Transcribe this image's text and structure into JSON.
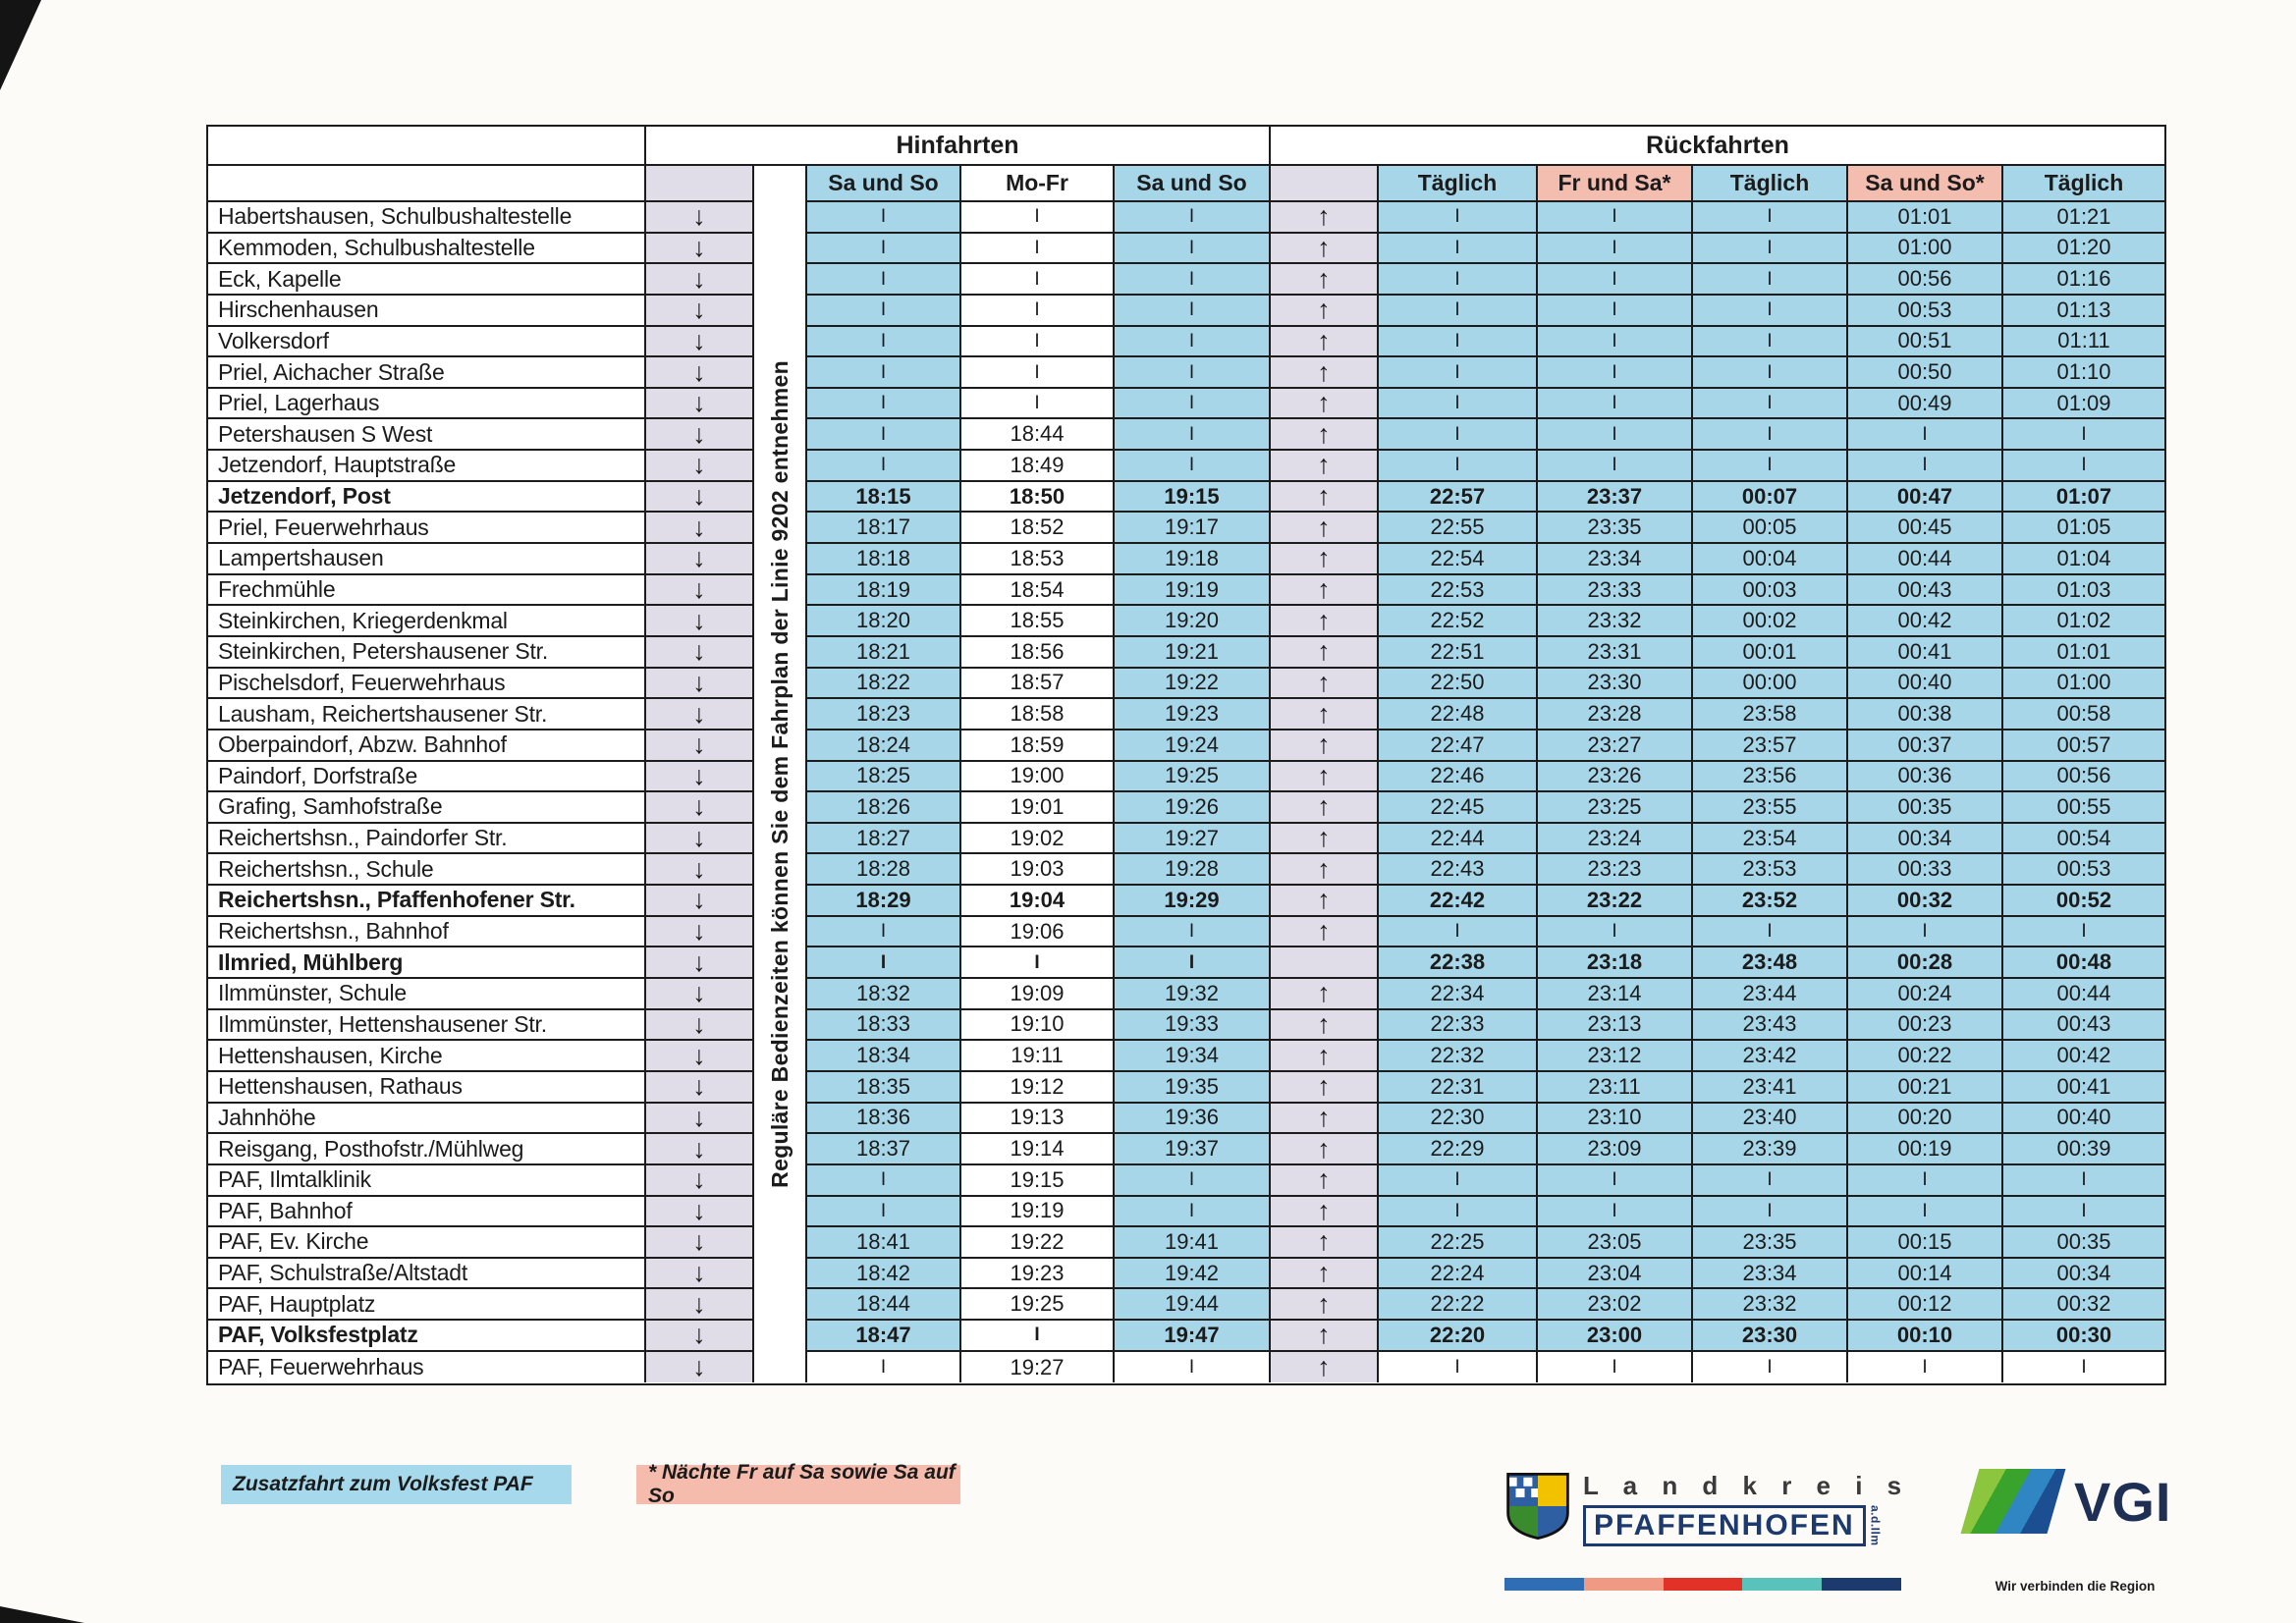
{
  "table": {
    "section_hin": "Hinfahrten",
    "section_rueck": "Rückfahrten",
    "hin_col_headers": [
      "Sa und So",
      "Mo-Fr",
      "Sa und So"
    ],
    "rueck_col_headers": [
      "Täglich",
      "Fr und Sa*",
      "Täglich",
      "Sa und So*",
      "Täglich"
    ],
    "vertical_note": "Reguläre Bedienzeiten können Sie dem Fahrplan der Linie 9202 entnehmen",
    "pass_symbol": "I",
    "rows": [
      {
        "stop": "Habertshausen, Schulbushaltestelle",
        "down": "↓",
        "up": "↑",
        "hin": [
          "I",
          "I",
          "I"
        ],
        "rueck": [
          "I",
          "I",
          "I",
          "01:01",
          "01:21"
        ]
      },
      {
        "stop": "Kemmoden, Schulbushaltestelle",
        "down": "↓",
        "up": "↑",
        "hin": [
          "I",
          "I",
          "I"
        ],
        "rueck": [
          "I",
          "I",
          "I",
          "01:00",
          "01:20"
        ]
      },
      {
        "stop": "Eck, Kapelle",
        "down": "↓",
        "up": "↑",
        "hin": [
          "I",
          "I",
          "I"
        ],
        "rueck": [
          "I",
          "I",
          "I",
          "00:56",
          "01:16"
        ]
      },
      {
        "stop": "Hirschenhausen",
        "down": "↓",
        "up": "↑",
        "hin": [
          "I",
          "I",
          "I"
        ],
        "rueck": [
          "I",
          "I",
          "I",
          "00:53",
          "01:13"
        ]
      },
      {
        "stop": "Volkersdorf",
        "down": "↓",
        "up": "↑",
        "hin": [
          "I",
          "I",
          "I"
        ],
        "rueck": [
          "I",
          "I",
          "I",
          "00:51",
          "01:11"
        ]
      },
      {
        "stop": "Priel, Aichacher Straße",
        "down": "↓",
        "up": "↑",
        "hin": [
          "I",
          "I",
          "I"
        ],
        "rueck": [
          "I",
          "I",
          "I",
          "00:50",
          "01:10"
        ]
      },
      {
        "stop": "Priel, Lagerhaus",
        "down": "↓",
        "up": "↑",
        "hin": [
          "I",
          "I",
          "I"
        ],
        "rueck": [
          "I",
          "I",
          "I",
          "00:49",
          "01:09"
        ]
      },
      {
        "stop": "Petershausen S West",
        "down": "↓",
        "up": "↑",
        "hin": [
          "I",
          "18:44",
          "I"
        ],
        "rueck": [
          "I",
          "I",
          "I",
          "I",
          "I"
        ]
      },
      {
        "stop": "Jetzendorf, Hauptstraße",
        "down": "↓",
        "up": "↑",
        "hin": [
          "I",
          "18:49",
          "I"
        ],
        "rueck": [
          "I",
          "I",
          "I",
          "I",
          "I"
        ]
      },
      {
        "stop": "Jetzendorf, Post",
        "bold": true,
        "down": "↓",
        "up": "↑",
        "hin": [
          "18:15",
          "18:50",
          "19:15"
        ],
        "rueck": [
          "22:57",
          "23:37",
          "00:07",
          "00:47",
          "01:07"
        ]
      },
      {
        "stop": "Priel, Feuerwehrhaus",
        "down": "↓",
        "up": "↑",
        "hin": [
          "18:17",
          "18:52",
          "19:17"
        ],
        "rueck": [
          "22:55",
          "23:35",
          "00:05",
          "00:45",
          "01:05"
        ]
      },
      {
        "stop": "Lampertshausen",
        "down": "↓",
        "up": "↑",
        "hin": [
          "18:18",
          "18:53",
          "19:18"
        ],
        "rueck": [
          "22:54",
          "23:34",
          "00:04",
          "00:44",
          "01:04"
        ]
      },
      {
        "stop": "Frechmühle",
        "down": "↓",
        "up": "↑",
        "hin": [
          "18:19",
          "18:54",
          "19:19"
        ],
        "rueck": [
          "22:53",
          "23:33",
          "00:03",
          "00:43",
          "01:03"
        ]
      },
      {
        "stop": "Steinkirchen, Kriegerdenkmal",
        "down": "↓",
        "up": "↑",
        "hin": [
          "18:20",
          "18:55",
          "19:20"
        ],
        "rueck": [
          "22:52",
          "23:32",
          "00:02",
          "00:42",
          "01:02"
        ]
      },
      {
        "stop": "Steinkirchen, Petershausener Str.",
        "down": "↓",
        "up": "↑",
        "hin": [
          "18:21",
          "18:56",
          "19:21"
        ],
        "rueck": [
          "22:51",
          "23:31",
          "00:01",
          "00:41",
          "01:01"
        ]
      },
      {
        "stop": "Pischelsdorf, Feuerwehrhaus",
        "down": "↓",
        "up": "↑",
        "hin": [
          "18:22",
          "18:57",
          "19:22"
        ],
        "rueck": [
          "22:50",
          "23:30",
          "00:00",
          "00:40",
          "01:00"
        ]
      },
      {
        "stop": "Lausham, Reichertshausener Str.",
        "down": "↓",
        "up": "↑",
        "hin": [
          "18:23",
          "18:58",
          "19:23"
        ],
        "rueck": [
          "22:48",
          "23:28",
          "23:58",
          "00:38",
          "00:58"
        ]
      },
      {
        "stop": "Oberpaindorf, Abzw. Bahnhof",
        "down": "↓",
        "up": "↑",
        "hin": [
          "18:24",
          "18:59",
          "19:24"
        ],
        "rueck": [
          "22:47",
          "23:27",
          "23:57",
          "00:37",
          "00:57"
        ]
      },
      {
        "stop": "Paindorf, Dorfstraße",
        "down": "↓",
        "up": "↑",
        "hin": [
          "18:25",
          "19:00",
          "19:25"
        ],
        "rueck": [
          "22:46",
          "23:26",
          "23:56",
          "00:36",
          "00:56"
        ]
      },
      {
        "stop": "Grafing, Samhofstraße",
        "down": "↓",
        "up": "↑",
        "hin": [
          "18:26",
          "19:01",
          "19:26"
        ],
        "rueck": [
          "22:45",
          "23:25",
          "23:55",
          "00:35",
          "00:55"
        ]
      },
      {
        "stop": "Reichertshsn., Paindorfer Str.",
        "down": "↓",
        "up": "↑",
        "hin": [
          "18:27",
          "19:02",
          "19:27"
        ],
        "rueck": [
          "22:44",
          "23:24",
          "23:54",
          "00:34",
          "00:54"
        ]
      },
      {
        "stop": "Reichertshsn., Schule",
        "down": "↓",
        "up": "↑",
        "hin": [
          "18:28",
          "19:03",
          "19:28"
        ],
        "rueck": [
          "22:43",
          "23:23",
          "23:53",
          "00:33",
          "00:53"
        ]
      },
      {
        "stop": "Reichertshsn., Pfaffenhofener Str.",
        "bold": true,
        "down": "↓",
        "up": "↑",
        "hin": [
          "18:29",
          "19:04",
          "19:29"
        ],
        "rueck": [
          "22:42",
          "23:22",
          "23:52",
          "00:32",
          "00:52"
        ]
      },
      {
        "stop": "Reichertshsn., Bahnhof",
        "down": "↓",
        "up": "↑",
        "hin": [
          "I",
          "19:06",
          "I"
        ],
        "rueck": [
          "I",
          "I",
          "I",
          "I",
          "I"
        ]
      },
      {
        "stop": "Ilmried, Mühlberg",
        "bold": true,
        "down": "↓",
        "up": "",
        "hin": [
          "I",
          "I",
          "I"
        ],
        "rueck": [
          "22:38",
          "23:18",
          "23:48",
          "00:28",
          "00:48"
        ]
      },
      {
        "stop": "Ilmmünster, Schule",
        "down": "↓",
        "up": "↑",
        "hin": [
          "18:32",
          "19:09",
          "19:32"
        ],
        "rueck": [
          "22:34",
          "23:14",
          "23:44",
          "00:24",
          "00:44"
        ]
      },
      {
        "stop": "Ilmmünster, Hettenshausener Str.",
        "down": "↓",
        "up": "↑",
        "hin": [
          "18:33",
          "19:10",
          "19:33"
        ],
        "rueck": [
          "22:33",
          "23:13",
          "23:43",
          "00:23",
          "00:43"
        ]
      },
      {
        "stop": "Hettenshausen, Kirche",
        "down": "↓",
        "up": "↑",
        "hin": [
          "18:34",
          "19:11",
          "19:34"
        ],
        "rueck": [
          "22:32",
          "23:12",
          "23:42",
          "00:22",
          "00:42"
        ]
      },
      {
        "stop": "Hettenshausen, Rathaus",
        "down": "↓",
        "up": "↑",
        "hin": [
          "18:35",
          "19:12",
          "19:35"
        ],
        "rueck": [
          "22:31",
          "23:11",
          "23:41",
          "00:21",
          "00:41"
        ]
      },
      {
        "stop": "Jahnhöhe",
        "down": "↓",
        "up": "↑",
        "hin": [
          "18:36",
          "19:13",
          "19:36"
        ],
        "rueck": [
          "22:30",
          "23:10",
          "23:40",
          "00:20",
          "00:40"
        ]
      },
      {
        "stop": "Reisgang, Posthofstr./Mühlweg",
        "down": "↓",
        "up": "↑",
        "hin": [
          "18:37",
          "19:14",
          "19:37"
        ],
        "rueck": [
          "22:29",
          "23:09",
          "23:39",
          "00:19",
          "00:39"
        ]
      },
      {
        "stop": "PAF, Ilmtalklinik",
        "down": "↓",
        "up": "↑",
        "hin": [
          "I",
          "19:15",
          "I"
        ],
        "rueck": [
          "I",
          "I",
          "I",
          "I",
          "I"
        ]
      },
      {
        "stop": "PAF, Bahnhof",
        "down": "↓",
        "up": "↑",
        "hin": [
          "I",
          "19:19",
          "I"
        ],
        "rueck": [
          "I",
          "I",
          "I",
          "I",
          "I"
        ]
      },
      {
        "stop": "PAF, Ev. Kirche",
        "down": "↓",
        "up": "↑",
        "hin": [
          "18:41",
          "19:22",
          "19:41"
        ],
        "rueck": [
          "22:25",
          "23:05",
          "23:35",
          "00:15",
          "00:35"
        ]
      },
      {
        "stop": "PAF, Schulstraße/Altstadt",
        "down": "↓",
        "up": "↑",
        "hin": [
          "18:42",
          "19:23",
          "19:42"
        ],
        "rueck": [
          "22:24",
          "23:04",
          "23:34",
          "00:14",
          "00:34"
        ]
      },
      {
        "stop": "PAF, Hauptplatz",
        "down": "↓",
        "up": "↑",
        "hin": [
          "18:44",
          "19:25",
          "19:44"
        ],
        "rueck": [
          "22:22",
          "23:02",
          "23:32",
          "00:12",
          "00:32"
        ]
      },
      {
        "stop": "PAF, Volksfestplatz",
        "bold": true,
        "down": "↓",
        "up": "↑",
        "hin": [
          "18:47",
          "I",
          "19:47"
        ],
        "rueck": [
          "22:20",
          "23:00",
          "23:30",
          "00:10",
          "00:30"
        ]
      },
      {
        "stop": "PAF, Feuerwehrhaus",
        "white": true,
        "down": "↓",
        "up": "↑",
        "hin": [
          "I",
          "19:27",
          "I"
        ],
        "rueck": [
          "I",
          "I",
          "I",
          "I",
          "I"
        ]
      }
    ]
  },
  "legend": [
    {
      "label": "Zusatzfahrt zum Volksfest PAF",
      "color": "#a6d9ec"
    },
    {
      "label": "* Nächte Fr auf Sa sowie Sa auf So",
      "color": "#f5bcae"
    }
  ],
  "logos": {
    "landkreis": {
      "line1": "L a n d k r e i s",
      "line2": "PFAFFENHOFEN",
      "suffix": "a.d.Ilm",
      "bar_colors": [
        "#2f6db5",
        "#f09a83",
        "#e23227",
        "#59c2bb",
        "#1c3a6d"
      ]
    },
    "vgi": {
      "text": "VGI",
      "tagline": "Wir verbinden die Region",
      "stripe_colors": [
        "#8cc63e",
        "#3aa32c",
        "#2f86c3",
        "#1c4e92"
      ]
    }
  },
  "colors": {
    "cell_blue": "#a6d6e8",
    "cell_lavender": "#e0dde9",
    "header_pink": "#f3bdb0",
    "ink": "#1b1b1b"
  }
}
